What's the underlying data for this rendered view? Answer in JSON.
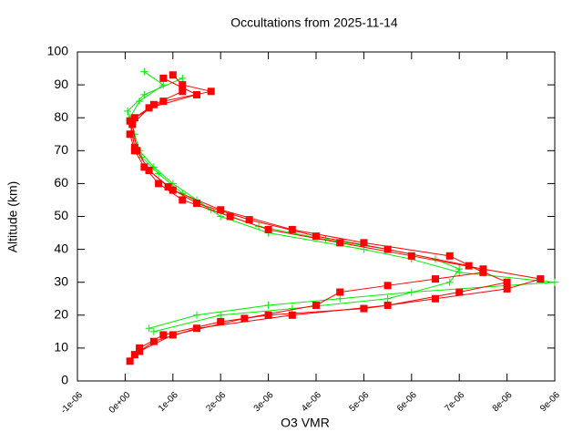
{
  "chart_data": {
    "type": "line",
    "title": "Occultations from 2025-11-14",
    "x_label": "O3 VMR",
    "y_label": "Altitude (km)",
    "xlim": [
      -1e-06,
      9e-06
    ],
    "ylim": [
      0,
      100
    ],
    "xticks": [
      {
        "value": -1e-06,
        "label": "-1e-06"
      },
      {
        "value": 0,
        "label": "0e+00"
      },
      {
        "value": 1e-06,
        "label": "1e-06"
      },
      {
        "value": 2e-06,
        "label": "2e-06"
      },
      {
        "value": 3e-06,
        "label": "3e-06"
      },
      {
        "value": 4e-06,
        "label": "4e-06"
      },
      {
        "value": 5e-06,
        "label": "5e-06"
      },
      {
        "value": 6e-06,
        "label": "6e-06"
      },
      {
        "value": 7e-06,
        "label": "7e-06"
      },
      {
        "value": 8e-06,
        "label": "8e-06"
      },
      {
        "value": 9e-06,
        "label": "9e-06"
      }
    ],
    "yticks": [
      0,
      10,
      20,
      30,
      40,
      50,
      60,
      70,
      80,
      90,
      100
    ],
    "series": [
      {
        "color": "#00ee00",
        "marker": "plus",
        "x": [
          5e-07,
          1.5e-06,
          3e-06,
          4.5e-06,
          6e-06,
          9e-06,
          7e-06,
          6e-06,
          5e-06,
          3e-06,
          2e-06,
          1.5e-06,
          1e-06,
          6e-07,
          3e-07,
          2e-07,
          1e-07,
          3e-07,
          8e-07,
          4e-07
        ],
        "values": [
          16,
          20,
          23,
          25,
          27,
          30,
          33,
          37,
          40,
          45,
          50,
          55,
          60,
          65,
          70,
          75,
          80,
          85,
          90,
          94
        ]
      },
      {
        "color": "#00ee00",
        "marker": "plus",
        "x": [
          6e-07,
          2e-06,
          3.5e-06,
          5.5e-06,
          6.8e-06,
          7e-06,
          6.5e-06,
          5.5e-06,
          4.2e-06,
          2.8e-06,
          1.8e-06,
          1.2e-06,
          7e-07,
          3.5e-07,
          1.5e-07,
          5e-08,
          4e-07,
          1.2e-06
        ],
        "values": [
          15,
          20,
          22,
          25,
          30,
          34,
          37,
          40,
          43,
          47,
          52,
          57,
          63,
          68,
          75,
          82,
          87,
          92
        ]
      },
      {
        "color": "#ff0000",
        "marker": "square",
        "x": [
          1e-07,
          3e-07,
          8e-07,
          2e-06,
          3e-06,
          5e-06,
          6.5e-06,
          8e-06,
          8.7e-06,
          7.5e-06,
          6e-06,
          4.5e-06,
          3e-06,
          2.2e-06,
          1.2e-06,
          7e-07,
          4e-07,
          2e-07,
          1e-07,
          2e-07,
          8e-07,
          1.8e-06,
          1.2e-06,
          1e-06
        ],
        "values": [
          6,
          10,
          14,
          18,
          20,
          22,
          25,
          28,
          31,
          34,
          38,
          42,
          46,
          50,
          55,
          60,
          65,
          70,
          75,
          80,
          85,
          88,
          90,
          93
        ]
      },
      {
        "color": "#ff0000",
        "marker": "square",
        "x": [
          2e-07,
          6e-07,
          1.5e-06,
          3.5e-06,
          5.5e-06,
          7e-06,
          8e-06,
          7.2e-06,
          5.5e-06,
          4e-06,
          2.6e-06,
          1.5e-06,
          9e-07,
          5e-07,
          2.5e-07,
          1.5e-07,
          5e-07,
          1.5e-06,
          8e-07
        ],
        "values": [
          8,
          12,
          16,
          20,
          23,
          27,
          30,
          35,
          40,
          44,
          49,
          54,
          59,
          64,
          70,
          78,
          83,
          87,
          92
        ]
      },
      {
        "color": "#ff0000",
        "marker": "square",
        "x": [
          3e-07,
          1e-06,
          2.5e-06,
          4e-06,
          4.5e-06,
          5.5e-06,
          6.5e-06,
          7.5e-06,
          6.8e-06,
          5e-06,
          3.5e-06,
          2e-06,
          1e-06,
          5e-07,
          2e-07,
          1e-07,
          6e-07,
          1.2e-06
        ],
        "values": [
          9,
          14,
          19,
          23,
          27,
          29,
          31,
          33,
          38,
          42,
          46,
          52,
          58,
          64,
          71,
          79,
          84,
          88
        ]
      }
    ]
  }
}
